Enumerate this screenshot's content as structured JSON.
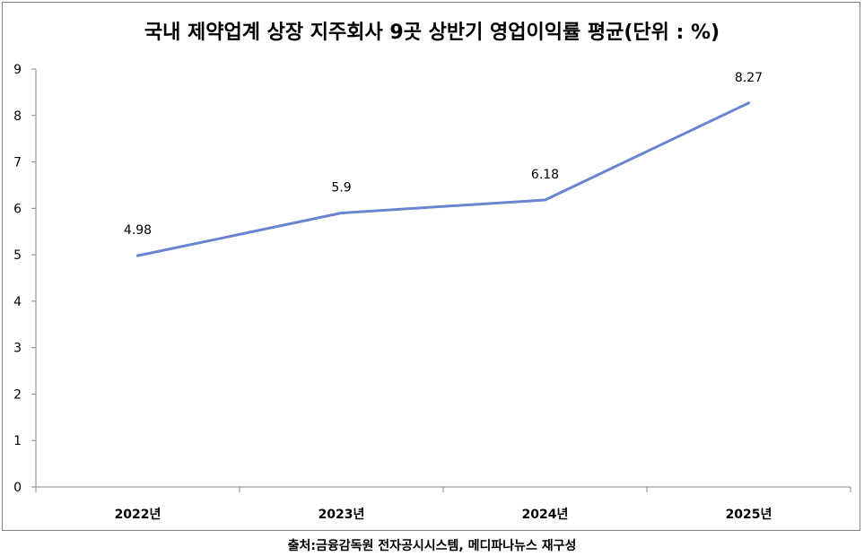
{
  "chart_data": {
    "type": "line",
    "title": "국내 제약업계 상장 지주회사 9곳 상반기 영업이익률 평균(단위 : %)",
    "categories": [
      "2022년",
      "2023년",
      "2024년",
      "2025년"
    ],
    "series": [
      {
        "values": [
          4.98,
          5.9,
          6.18,
          8.27
        ]
      }
    ],
    "data_labels": [
      "4.98",
      "5.9",
      "6.18",
      "8.27"
    ],
    "ylim": [
      0,
      9
    ],
    "yticks": [
      "0",
      "1",
      "2",
      "3",
      "4",
      "5",
      "6",
      "7",
      "8",
      "9"
    ],
    "grid": false,
    "line_color": "#6a85d0"
  },
  "source_text": "출처:금융감독원 전자공시시스템, 메디파나뉴스 재구성"
}
